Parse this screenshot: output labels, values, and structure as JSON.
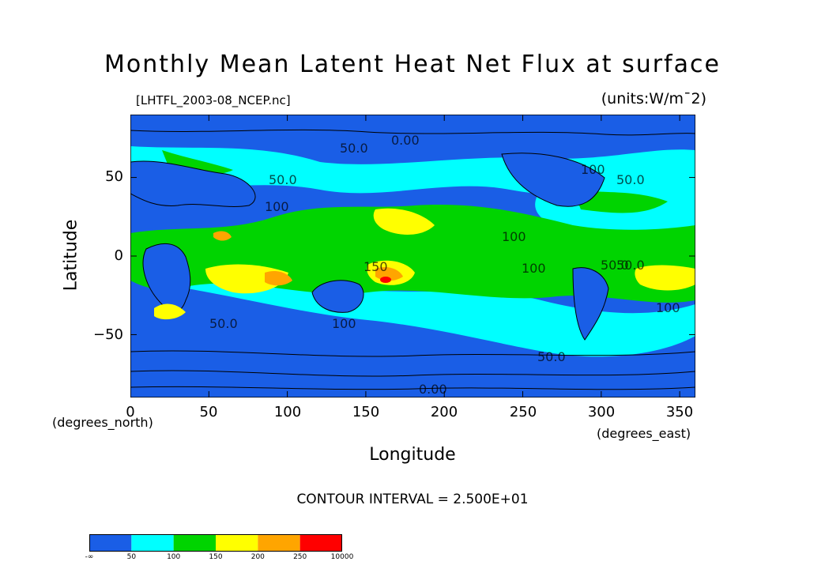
{
  "chart_data": {
    "type": "heatmap",
    "title": "Monthly Mean Latent Heat Net Flux at surface",
    "subtitle": "[LHTFL_2003-08_NCEP.nc]",
    "units": "(units:W/m¯2)",
    "xlabel": "Longitude",
    "ylabel": "Latitude",
    "x_unit_label": "(degrees_east)",
    "y_unit_label": "(degrees_north)",
    "xlim": [
      0,
      360
    ],
    "ylim": [
      -90,
      90
    ],
    "x_ticks": [
      0,
      50,
      100,
      150,
      200,
      250,
      300,
      350
    ],
    "y_ticks": [
      50,
      0,
      -50
    ],
    "contour_interval_text": "CONTOUR INTERVAL = 2.500E+01",
    "contour_labels": [
      "0.00",
      "50.0",
      "50.0",
      "100",
      "100",
      "150",
      "100",
      "100",
      "50.0",
      "100",
      "50.0",
      "50.0",
      "100",
      "0.00",
      "50.0",
      "50.0"
    ],
    "colorbar": {
      "levels": [
        "-∞",
        "50",
        "100",
        "150",
        "200",
        "250",
        "10000"
      ],
      "colors": [
        "#1a5ee6",
        "#00ffff",
        "#00d400",
        "#ffff00",
        "#ffa500",
        "#ff0000"
      ]
    }
  },
  "axes": {
    "y_tick_labels": [
      "50",
      "0",
      "−50"
    ],
    "x_tick_labels": [
      "0",
      "50",
      "100",
      "150",
      "200",
      "250",
      "300",
      "350"
    ]
  }
}
